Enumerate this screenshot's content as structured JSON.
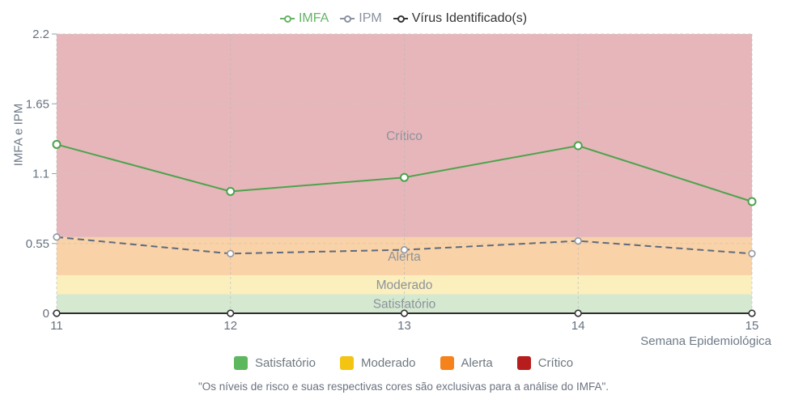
{
  "top_legend": {
    "items": [
      {
        "label": "IMFA",
        "color": "#66b366"
      },
      {
        "label": "IPM",
        "color": "#8a91a0"
      },
      {
        "label": "Vírus Identificado(s)",
        "color": "#333333"
      }
    ]
  },
  "chart_data": {
    "type": "line",
    "x": [
      11,
      12,
      13,
      14,
      15
    ],
    "xlabel": "Semana Epidemiológica",
    "ylabel": "IMFA e IPM",
    "ylim": [
      0,
      2.2
    ],
    "yticks": [
      0,
      0.55,
      1.1,
      1.65,
      2.2
    ],
    "grid": true,
    "legend_position": "top",
    "series": [
      {
        "name": "IMFA",
        "values": [
          1.33,
          0.96,
          1.07,
          1.32,
          0.88
        ],
        "color": "#4da34d",
        "style": "solid",
        "marker_stroke": "#4da34d"
      },
      {
        "name": "IPM",
        "values": [
          0.6,
          0.47,
          0.5,
          0.57,
          0.47
        ],
        "color": "#5d6b7e",
        "style": "dashed",
        "marker_stroke": "#8f97a4"
      },
      {
        "name": "Vírus Identificado(s)",
        "values": [
          0,
          0,
          0,
          0,
          0
        ],
        "color": "#2e2e2e",
        "style": "solid",
        "marker_stroke": "#333333"
      }
    ],
    "bands": [
      {
        "label": "Satisfatório",
        "from": 0,
        "to": 0.15,
        "fill": "#d5e9d0"
      },
      {
        "label": "Moderado",
        "from": 0.15,
        "to": 0.3,
        "fill": "#fbf0bd"
      },
      {
        "label": "Alerta",
        "from": 0.3,
        "to": 0.6,
        "fill": "#fad2a7"
      },
      {
        "label": "Crítico",
        "from": 0.6,
        "to": 2.2,
        "fill": "#e6b6ba"
      }
    ],
    "band_label_color": "#8b939c",
    "tick_label_color": "#66727f"
  },
  "bottom_legend": {
    "items": [
      {
        "label": "Satisfatório",
        "color": "#5db75d"
      },
      {
        "label": "Moderado",
        "color": "#f3c412"
      },
      {
        "label": "Alerta",
        "color": "#f6821c"
      },
      {
        "label": "Crítico",
        "color": "#b71d1d"
      }
    ]
  },
  "footnote": "\"Os níveis de risco e suas respectivas cores são exclusivas para a análise do IMFA\"."
}
